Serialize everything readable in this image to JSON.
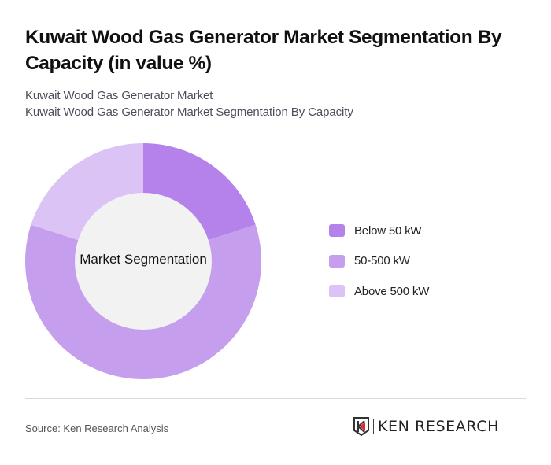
{
  "header": {
    "title": "Kuwait Wood Gas Generator Market Segmentation By Capacity (in value %)",
    "breadcrumb_1": "Kuwait Wood Gas Generator Market",
    "breadcrumb_2": "Kuwait Wood Gas Generator Market Segmentation By Capacity"
  },
  "chart": {
    "center_label": "Market Segmentation"
  },
  "legend": [
    {
      "label": "Below 50 kW",
      "color": "#b482ea"
    },
    {
      "label": "50-500 kW",
      "color": "#c59eee"
    },
    {
      "label": "Above 500 kW",
      "color": "#dcc3f6"
    }
  ],
  "footer": {
    "source": "Source: Ken Research Analysis",
    "logo_text": "KEN RESEARCH"
  },
  "chart_data": {
    "type": "pie",
    "subtype": "donut",
    "title": "Kuwait Wood Gas Generator Market Segmentation By Capacity (in value %)",
    "center_label": "Market Segmentation",
    "categories": [
      "Below 50 kW",
      "50-500 kW",
      "Above 500 kW"
    ],
    "values": [
      20,
      60,
      20
    ],
    "colors": [
      "#b482ea",
      "#c59eee",
      "#dcc3f6"
    ],
    "legend_position": "right",
    "unit": "%"
  }
}
